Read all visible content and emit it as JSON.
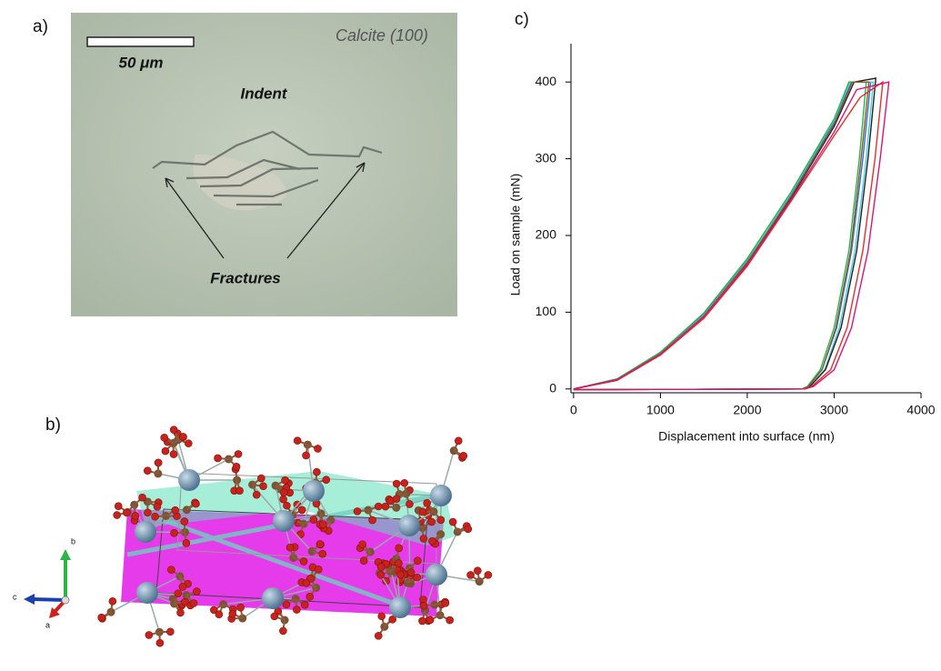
{
  "panel_labels": [
    "a)",
    "b)",
    "c)"
  ],
  "micrograph": {
    "sample": "Calcite (100)",
    "scale_bar": "50 μm",
    "indent_label": "Indent",
    "fracture_label": "Fractures"
  },
  "structure": {
    "axis_labels": [
      "b",
      "c",
      "a"
    ]
  },
  "chart_data": {
    "type": "line",
    "xlabel": "Displacement into surface (nm)",
    "ylabel": "Load on sample (mN)",
    "xlim": [
      -30,
      4000
    ],
    "ylim": [
      -5,
      450
    ],
    "xticks": [
      0,
      1000,
      2000,
      3000,
      4000
    ],
    "yticks": [
      0,
      100,
      200,
      300,
      400
    ],
    "series": [
      {
        "color": "#2a6fd6",
        "x": [
          0,
          500,
          1000,
          1500,
          2000,
          2500,
          3000,
          3200,
          3420,
          3330,
          3200,
          3030,
          2860,
          2700,
          2640,
          0
        ],
        "values": [
          0,
          13,
          47,
          97,
          167,
          252,
          348,
          400,
          400,
          300,
          180,
          80,
          25,
          3,
          0,
          -1
        ]
      },
      {
        "color": "#4dc8e0",
        "x": [
          0,
          500,
          1000,
          1500,
          2000,
          2500,
          3000,
          3180,
          3450,
          3370,
          3240,
          3060,
          2890,
          2710,
          2650,
          0
        ],
        "values": [
          0,
          12,
          46,
          96,
          166,
          254,
          350,
          400,
          400,
          300,
          180,
          80,
          25,
          3,
          0,
          -1
        ]
      },
      {
        "color": "#2db34a",
        "x": [
          0,
          500,
          1000,
          1500,
          2000,
          2500,
          3000,
          3170,
          3370,
          3290,
          3170,
          3000,
          2840,
          2690,
          2630,
          0
        ],
        "values": [
          0,
          13,
          48,
          99,
          170,
          256,
          352,
          400,
          400,
          300,
          180,
          80,
          25,
          3,
          0,
          -1
        ]
      },
      {
        "color": "#222222",
        "x": [
          0,
          500,
          1000,
          1500,
          2000,
          2500,
          3000,
          3230,
          3480,
          3390,
          3260,
          3080,
          2900,
          2720,
          2660,
          0
        ],
        "values": [
          0,
          12,
          45,
          94,
          163,
          248,
          342,
          400,
          405,
          300,
          180,
          80,
          25,
          3,
          0,
          -1
        ]
      },
      {
        "color": "#8b5a2b",
        "x": [
          0,
          500,
          1000,
          1500,
          2000,
          2500,
          3000,
          3210,
          3400,
          3310,
          3190,
          3020,
          2860,
          2700,
          2640,
          0
        ],
        "values": [
          0,
          12,
          46,
          95,
          165,
          250,
          345,
          400,
          400,
          300,
          180,
          80,
          25,
          3,
          0,
          -1
        ]
      },
      {
        "color": "#e0302a",
        "x": [
          0,
          500,
          1000,
          1500,
          2000,
          2500,
          3000,
          3300,
          3560,
          3470,
          3330,
          3150,
          2960,
          2740,
          2660,
          0
        ],
        "values": [
          0,
          11,
          44,
          92,
          160,
          244,
          330,
          380,
          400,
          300,
          180,
          80,
          25,
          3,
          0,
          -1
        ]
      },
      {
        "color": "#d0187a",
        "x": [
          0,
          500,
          1000,
          1500,
          2000,
          2500,
          3000,
          3260,
          3630,
          3530,
          3390,
          3200,
          3000,
          2760,
          2660,
          0
        ],
        "values": [
          0,
          12,
          45,
          94,
          162,
          246,
          335,
          390,
          400,
          300,
          180,
          80,
          25,
          3,
          0,
          -1
        ]
      }
    ]
  }
}
